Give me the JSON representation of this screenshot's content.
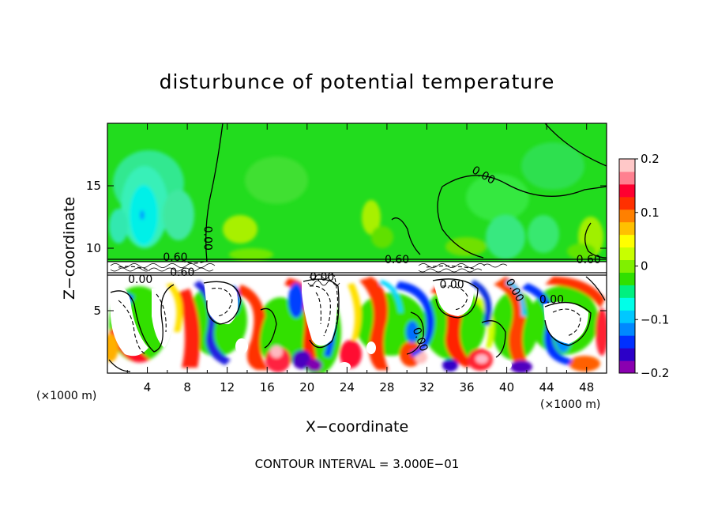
{
  "chart_data": {
    "type": "heatmap",
    "title": "disturbunce of potential temperature",
    "xlabel": "X−coordinate",
    "ylabel": "Z−coordinate",
    "x_unit": "(×1000 m)",
    "y_unit": "(×1000 m)",
    "xlim": [
      0,
      50
    ],
    "ylim": [
      0,
      20
    ],
    "x_ticks": [
      4,
      8,
      12,
      16,
      20,
      24,
      28,
      32,
      36,
      40,
      44,
      48
    ],
    "y_ticks": [
      5,
      10,
      15
    ],
    "colorbar": {
      "vmin": -0.2,
      "vmax": 0.2,
      "ticks": [
        0.2,
        0.1,
        0,
        -0.1,
        -0.2
      ],
      "tick_labels": [
        "0.2",
        "0.1",
        "0",
        "−0.1",
        "−0.2"
      ],
      "colors": [
        "#8a00b0",
        "#2c00c8",
        "#0030ff",
        "#0088ff",
        "#00c8ff",
        "#00ffe8",
        "#00f080",
        "#30e000",
        "#80f000",
        "#c8ff00",
        "#ffff00",
        "#ffc000",
        "#ff8000",
        "#ff3000",
        "#ff0030",
        "#ff8090",
        "#ffc8c8"
      ]
    },
    "contour_labels": [
      {
        "text": "0.00",
        "x": 37.5,
        "z": 15.6,
        "rot": 30
      },
      {
        "text": "0.00",
        "x": 9.7,
        "z": 10.8,
        "rot": 90
      },
      {
        "text": "0.60",
        "x": 29.0,
        "z": 8.8,
        "rot": 0
      },
      {
        "text": "0.60",
        "x": 48.2,
        "z": 8.8,
        "rot": 0
      },
      {
        "text": "0.60",
        "x": 6.8,
        "z": 9.0,
        "rot": 0
      },
      {
        "text": "0.60",
        "x": 7.5,
        "z": 7.8,
        "rot": 0
      },
      {
        "text": "0.00",
        "x": 3.3,
        "z": 7.2,
        "rot": 0
      },
      {
        "text": "0.00",
        "x": 21.5,
        "z": 7.4,
        "rot": 0
      },
      {
        "text": "0.00",
        "x": 34.5,
        "z": 6.8,
        "rot": 0
      },
      {
        "text": "0.00",
        "x": 40.5,
        "z": 6.5,
        "rot": 60
      },
      {
        "text": "0.00",
        "x": 44.5,
        "z": 5.6,
        "rot": 0
      },
      {
        "text": "0.00",
        "x": 31.0,
        "z": 2.6,
        "rot": 70
      }
    ],
    "contour_interval": "CONTOUR INTERVAL = 3.000E−01"
  }
}
